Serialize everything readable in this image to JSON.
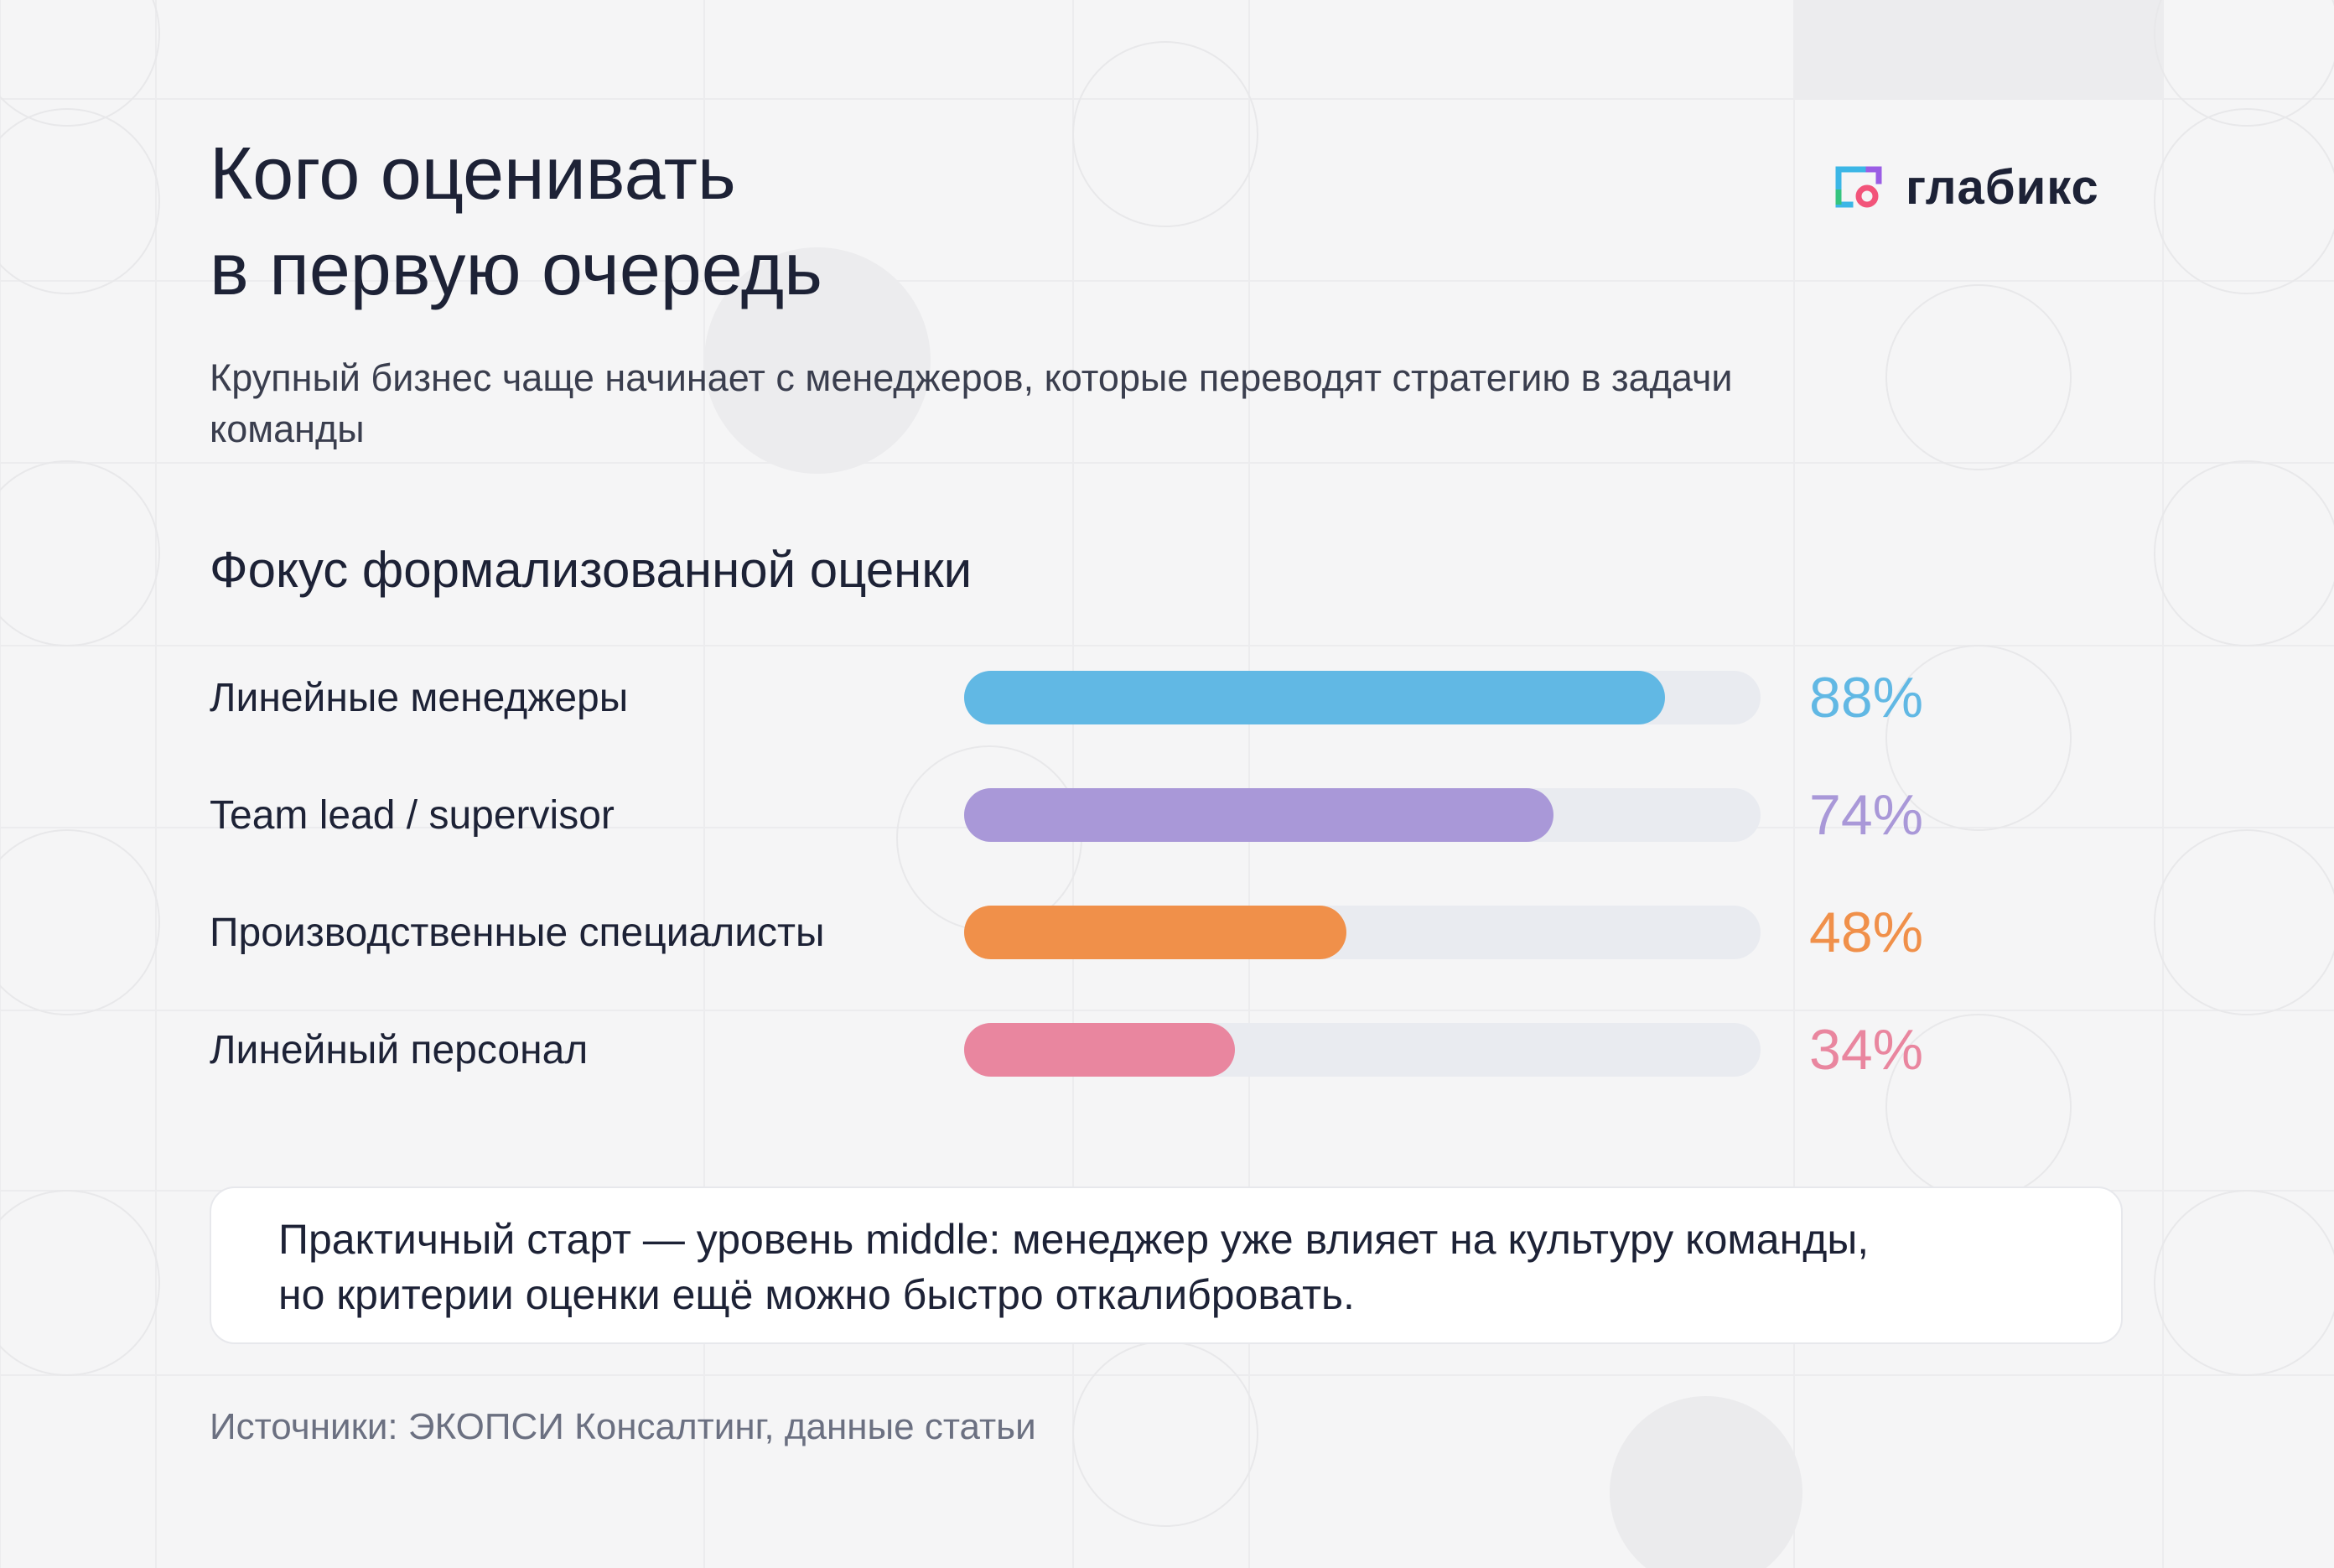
{
  "title": {
    "line1": "Кого оценивать",
    "line2": "в первую очередь"
  },
  "brand": {
    "name": "глабикс",
    "icon": "glabix-logo-icon",
    "colors": [
      "#3bb6e6",
      "#9b5de5",
      "#f2547a",
      "#35c47f"
    ]
  },
  "subtitle": "Крупный бизнес чаще начинает с менеджеров, которые переводят стратегию в задачи команды",
  "section_title": "Фокус формализованной оценки",
  "chart_data": {
    "type": "bar",
    "orientation": "horizontal",
    "title": "",
    "categories": [
      "Линейные менеджеры",
      "Team lead / supervisor",
      "Производственные специалисты",
      "Линейный персонал"
    ],
    "values": [
      88,
      74,
      48,
      34
    ],
    "value_labels": [
      "88%",
      "74%",
      "48%",
      "34%"
    ],
    "colors": [
      "#61b8e4",
      "#a998d8",
      "#f0904a",
      "#e9869f"
    ],
    "track_color": "#e9ebf0",
    "xlim": [
      0,
      100
    ],
    "unit": "%",
    "grid": false,
    "legend": "none"
  },
  "callout": {
    "line1": "Практичный старт — уровень middle: менеджер уже влияет на культуру команды,",
    "line2": "но критерии оценки ещё можно быстро откалибровать."
  },
  "footnote": "Источники: ЭКОПСИ Консалтинг, данные статьи"
}
